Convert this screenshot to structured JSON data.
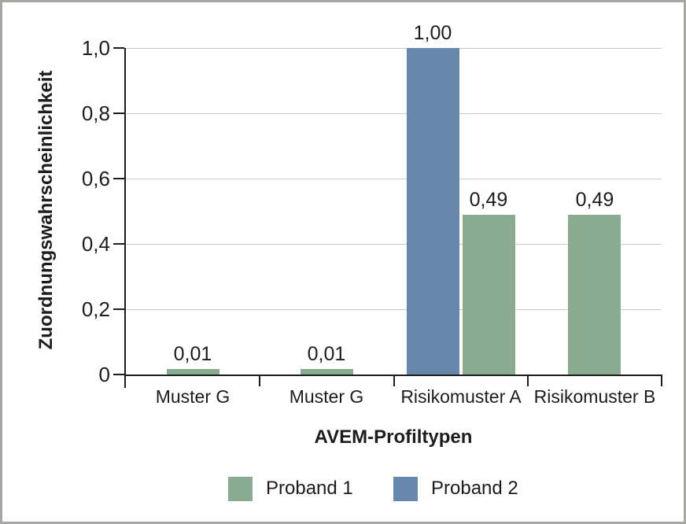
{
  "figure": {
    "background": "#ffffff",
    "frame_color": "#a5a8a2"
  },
  "colors": {
    "axis": "#1c1c1c",
    "grid": "#c9c9c9",
    "text": "#1c1c1c"
  },
  "chart_data": {
    "type": "bar",
    "ylabel": "Zuordnungswahrscheinlichkeit",
    "xlabel": "AVEM-Profiltypen",
    "ylim": [
      0,
      1.0
    ],
    "grid": true,
    "legend_position": "bottom",
    "decimal_style": "comma",
    "yticks": [
      {
        "value": 0,
        "label": "0"
      },
      {
        "value": 0.2,
        "label": "0,2"
      },
      {
        "value": 0.4,
        "label": "0,4"
      },
      {
        "value": 0.6,
        "label": "0,6"
      },
      {
        "value": 0.8,
        "label": "0,8"
      },
      {
        "value": 1.0,
        "label": "1,0"
      }
    ],
    "categories": [
      "Muster G",
      "Muster G",
      "Risikomuster A",
      "Risikomuster B"
    ],
    "series": [
      {
        "name": "Proband 1",
        "color": "#89ab8f",
        "values": [
          0.01,
          0.01,
          0.49,
          0.49
        ],
        "labels": [
          "0,01",
          "0,01",
          "0,49",
          "0,49"
        ]
      },
      {
        "name": "Proband 2",
        "color": "#6786ac",
        "values": [
          null,
          null,
          1.0,
          null
        ],
        "labels": [
          "",
          "",
          "1,00",
          ""
        ]
      }
    ],
    "legend": [
      {
        "label": "Proband 1",
        "series": "Proband 1"
      },
      {
        "label": "Proband 2",
        "series": "Proband 2"
      }
    ]
  }
}
